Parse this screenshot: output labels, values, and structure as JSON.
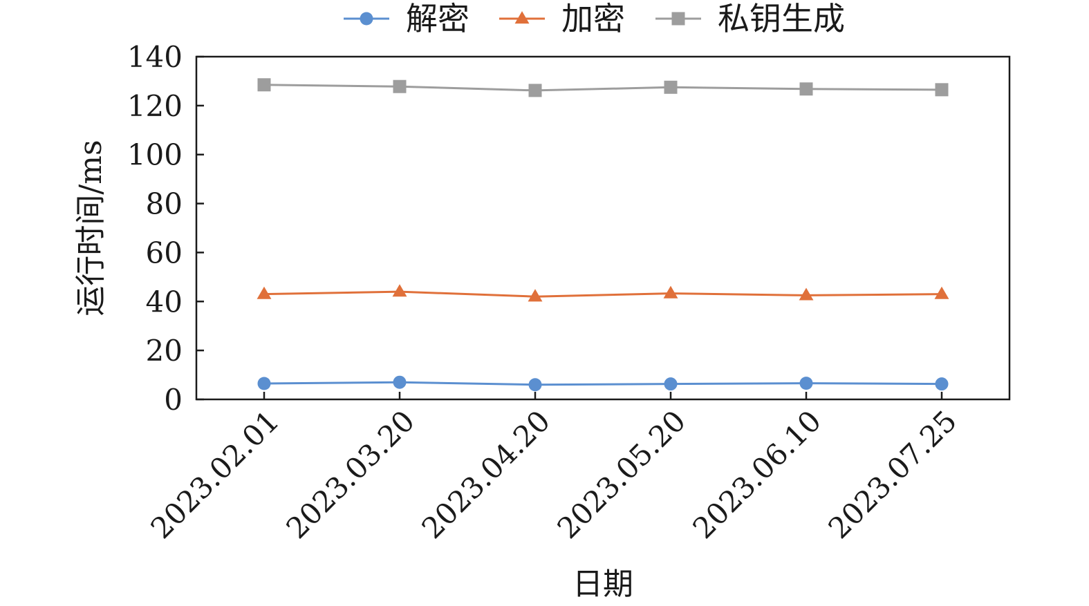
{
  "chart_data": {
    "type": "line",
    "title": "",
    "xlabel": "日期",
    "ylabel": "运行时间/ms",
    "categories": [
      "2023.02.01",
      "2023.03.20",
      "2023.04.20",
      "2023.05.20",
      "2023.06.10",
      "2023.07.25"
    ],
    "ylim": [
      0,
      140
    ],
    "yticks": [
      0,
      20,
      40,
      60,
      80,
      100,
      120,
      140
    ],
    "grid": false,
    "legend_position": "top",
    "series": [
      {
        "name": "解密",
        "color": "#5b8fd0",
        "marker": "circle",
        "values": [
          6.5,
          7.0,
          6.0,
          6.3,
          6.6,
          6.3
        ]
      },
      {
        "name": "加密",
        "color": "#e0703a",
        "marker": "triangle",
        "values": [
          43.0,
          44.0,
          42.0,
          43.3,
          42.5,
          43.0
        ]
      },
      {
        "name": "私钥生成",
        "color": "#9d9d9d",
        "marker": "square",
        "values": [
          128.5,
          127.8,
          126.2,
          127.5,
          126.8,
          126.5
        ]
      }
    ]
  }
}
